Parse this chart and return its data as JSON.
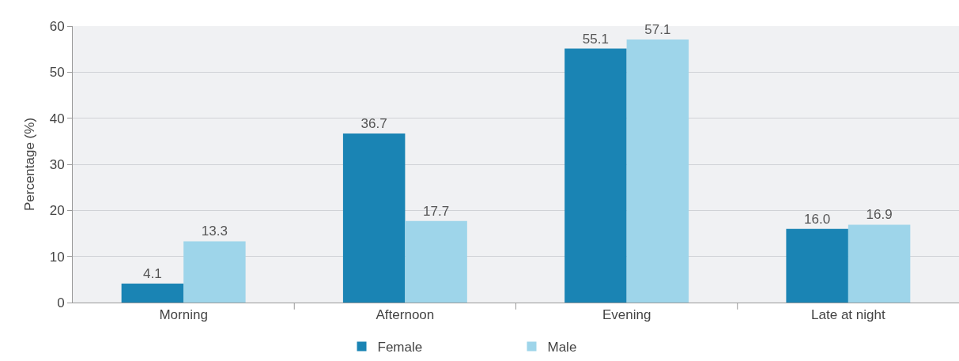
{
  "chart_data": {
    "type": "bar",
    "ylabel": "Percentage (%)",
    "categories": [
      "Morning",
      "Afternoon",
      "Evening",
      "Late at night"
    ],
    "series": [
      {
        "name": "Female",
        "color": "#1a84b4",
        "values": [
          4.1,
          36.7,
          55.1,
          16.0
        ]
      },
      {
        "name": "Male",
        "color": "#9ed5ea",
        "values": [
          13.3,
          17.7,
          57.1,
          16.9
        ]
      }
    ],
    "value_labels": [
      [
        "4.1",
        "36.7",
        "55.1",
        "16.0"
      ],
      [
        "13.3",
        "17.7",
        "57.1",
        "16.9"
      ]
    ],
    "ylim": [
      0,
      60
    ],
    "yticks": [
      0,
      10,
      20,
      30,
      40,
      50,
      60
    ],
    "grid": "y",
    "legend": "bottom"
  }
}
